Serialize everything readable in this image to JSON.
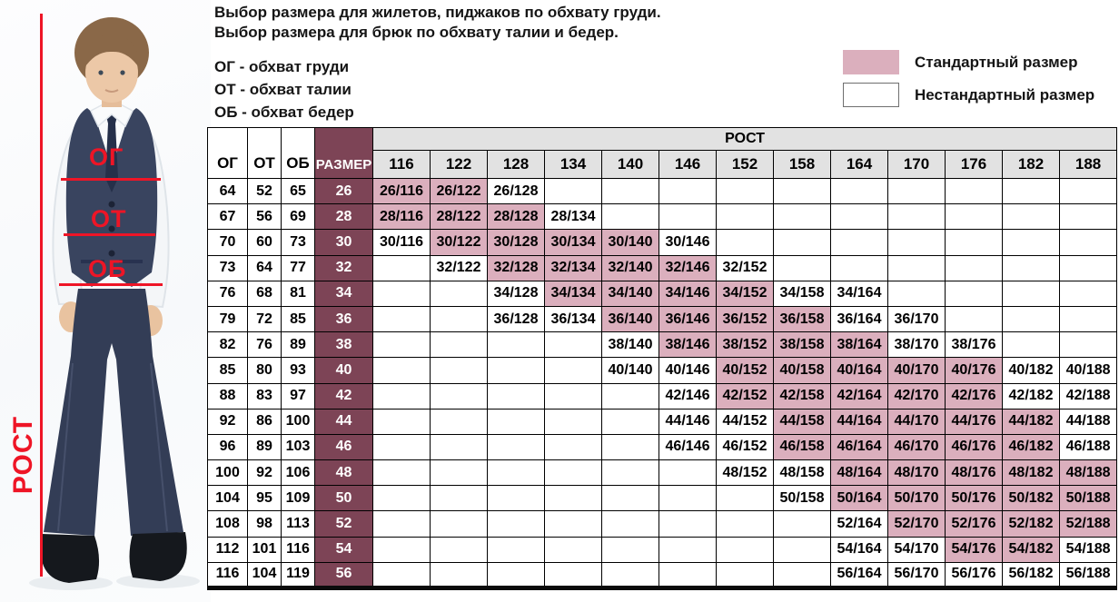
{
  "colors": {
    "standard_cell": "#dbafbd",
    "size_column": "#7d4456",
    "header_gray": "#e2e2e2",
    "annotation_red": "#ee1526"
  },
  "intro": {
    "line1": "Выбор размера для жилетов, пиджаков по обхвату груди.",
    "line2": "Выбор размера для брюк по обхвату талии и бедер.",
    "abbr": [
      "ОГ - обхват груди",
      "ОТ - обхват талии",
      "ОБ - обхват бедер"
    ]
  },
  "legend": {
    "standard": "Стандартный размер",
    "nonstandard": "Нестандартный размер"
  },
  "figure": {
    "chest": "ОГ",
    "waist": "ОТ",
    "hips": "ОБ",
    "height": "РОСТ"
  },
  "chart_data": {
    "type": "table",
    "corner_columns": [
      "ОГ",
      "ОТ",
      "ОБ",
      "РАЗМЕР"
    ],
    "height_group_header": "РОСТ",
    "heights": [
      116,
      122,
      128,
      134,
      140,
      146,
      152,
      158,
      164,
      170,
      176,
      182,
      188
    ],
    "cell_format": "{size}/{height}",
    "availability_codes": {
      "0": "empty",
      "1": "non-standard (white)",
      "2": "standard (pink)"
    },
    "rows": [
      {
        "og": 64,
        "ot": 52,
        "ob": 65,
        "size": 26,
        "availability": [
          2,
          2,
          1,
          0,
          0,
          0,
          0,
          0,
          0,
          0,
          0,
          0,
          0
        ]
      },
      {
        "og": 67,
        "ot": 56,
        "ob": 69,
        "size": 28,
        "availability": [
          2,
          2,
          2,
          1,
          0,
          0,
          0,
          0,
          0,
          0,
          0,
          0,
          0
        ]
      },
      {
        "og": 70,
        "ot": 60,
        "ob": 73,
        "size": 30,
        "availability": [
          1,
          2,
          2,
          2,
          2,
          1,
          0,
          0,
          0,
          0,
          0,
          0,
          0
        ]
      },
      {
        "og": 73,
        "ot": 64,
        "ob": 77,
        "size": 32,
        "availability": [
          0,
          1,
          2,
          2,
          2,
          2,
          1,
          0,
          0,
          0,
          0,
          0,
          0
        ]
      },
      {
        "og": 76,
        "ot": 68,
        "ob": 81,
        "size": 34,
        "availability": [
          0,
          0,
          1,
          2,
          2,
          2,
          2,
          1,
          1,
          0,
          0,
          0,
          0
        ]
      },
      {
        "og": 79,
        "ot": 72,
        "ob": 85,
        "size": 36,
        "availability": [
          0,
          0,
          1,
          1,
          2,
          2,
          2,
          2,
          1,
          1,
          0,
          0,
          0
        ]
      },
      {
        "og": 82,
        "ot": 76,
        "ob": 89,
        "size": 38,
        "availability": [
          0,
          0,
          0,
          0,
          1,
          2,
          2,
          2,
          2,
          1,
          1,
          0,
          0
        ]
      },
      {
        "og": 85,
        "ot": 80,
        "ob": 93,
        "size": 40,
        "availability": [
          0,
          0,
          0,
          0,
          1,
          1,
          2,
          2,
          2,
          2,
          2,
          1,
          1
        ]
      },
      {
        "og": 88,
        "ot": 83,
        "ob": 97,
        "size": 42,
        "availability": [
          0,
          0,
          0,
          0,
          0,
          1,
          2,
          2,
          2,
          2,
          2,
          1,
          1
        ]
      },
      {
        "og": 92,
        "ot": 86,
        "ob": 100,
        "size": 44,
        "availability": [
          0,
          0,
          0,
          0,
          0,
          1,
          1,
          2,
          2,
          2,
          2,
          2,
          1
        ]
      },
      {
        "og": 96,
        "ot": 89,
        "ob": 103,
        "size": 46,
        "availability": [
          0,
          0,
          0,
          0,
          0,
          1,
          1,
          2,
          2,
          2,
          2,
          2,
          1
        ]
      },
      {
        "og": 100,
        "ot": 92,
        "ob": 106,
        "size": 48,
        "availability": [
          0,
          0,
          0,
          0,
          0,
          0,
          1,
          1,
          2,
          2,
          2,
          2,
          2
        ]
      },
      {
        "og": 104,
        "ot": 95,
        "ob": 109,
        "size": 50,
        "availability": [
          0,
          0,
          0,
          0,
          0,
          0,
          0,
          1,
          2,
          2,
          2,
          2,
          2
        ]
      },
      {
        "og": 108,
        "ot": 98,
        "ob": 113,
        "size": 52,
        "availability": [
          0,
          0,
          0,
          0,
          0,
          0,
          0,
          0,
          1,
          2,
          2,
          2,
          2
        ]
      },
      {
        "og": 112,
        "ot": 101,
        "ob": 116,
        "size": 54,
        "availability": [
          0,
          0,
          0,
          0,
          0,
          0,
          0,
          0,
          1,
          1,
          2,
          2,
          1
        ]
      },
      {
        "og": 116,
        "ot": 104,
        "ob": 119,
        "size": 56,
        "availability": [
          0,
          0,
          0,
          0,
          0,
          0,
          0,
          0,
          1,
          1,
          1,
          1,
          1
        ]
      }
    ]
  }
}
